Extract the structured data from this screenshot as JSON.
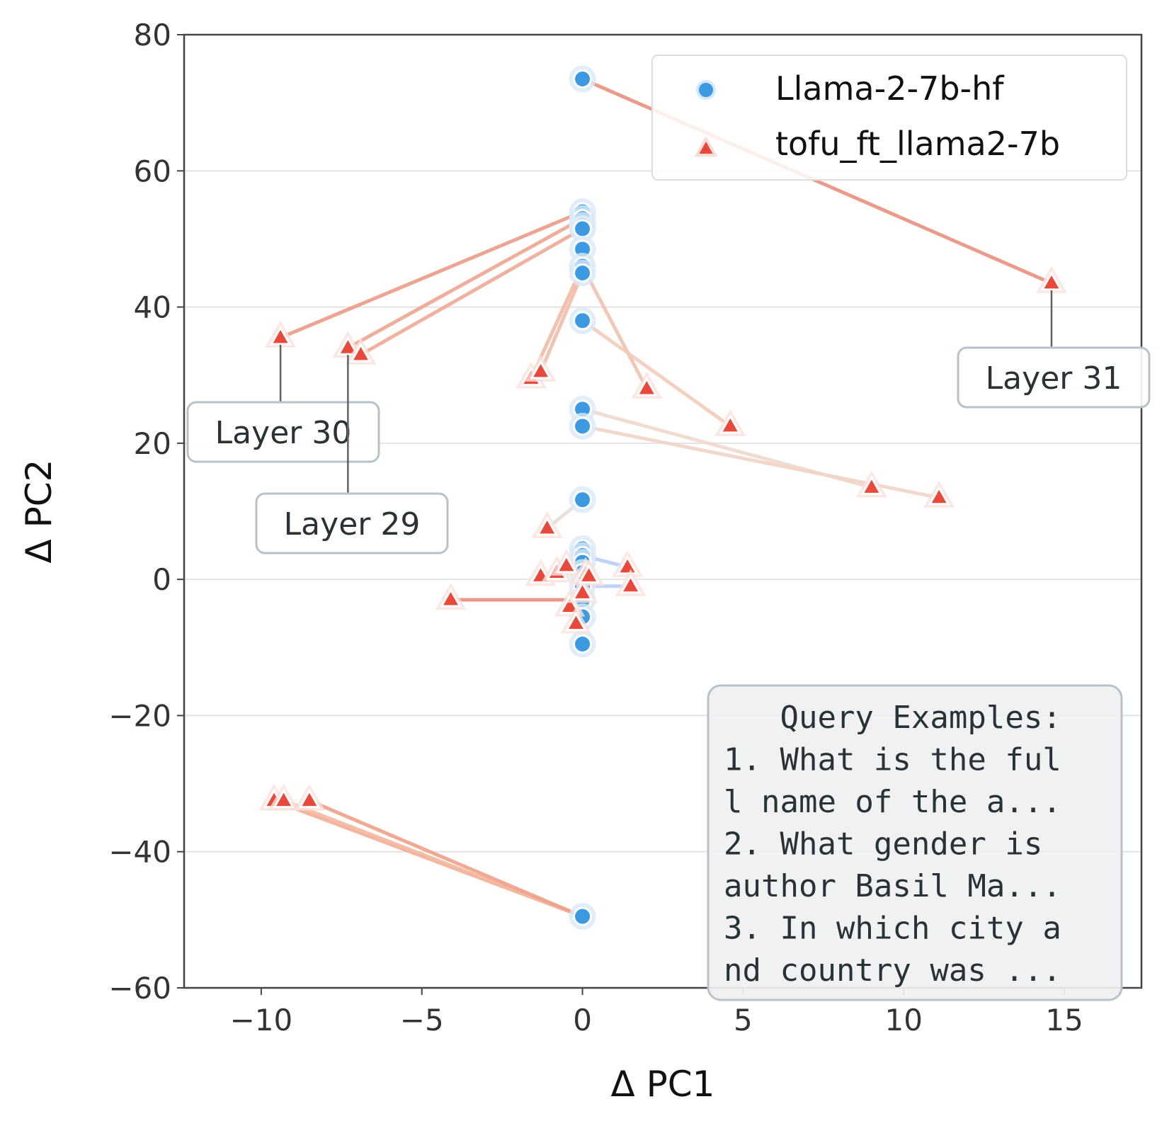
{
  "chart_data": {
    "type": "scatter",
    "xlabel": "Δ PC1",
    "ylabel": "Δ PC2",
    "xlim": [
      -12.4,
      17.4
    ],
    "ylim": [
      -60,
      80
    ],
    "xticks": [
      -10,
      -5,
      0,
      5,
      10,
      15
    ],
    "yticks": [
      -60,
      -40,
      -20,
      0,
      20,
      40,
      60,
      80
    ],
    "xtick_labels": [
      "−10",
      "−5",
      "0",
      "5",
      "10",
      "15"
    ],
    "ytick_labels": [
      "−60",
      "−40",
      "−20",
      "0",
      "20",
      "40",
      "60",
      "80"
    ],
    "grid": "horizontal",
    "legend_position": "top-right",
    "series": [
      {
        "name": "Llama-2-7b-hf",
        "marker": "circle",
        "color": "#3b9ae1",
        "points": [
          [
            0,
            73.5
          ],
          [
            0,
            54
          ],
          [
            0,
            53
          ],
          [
            0,
            52
          ],
          [
            0,
            51.5
          ],
          [
            0,
            48.5
          ],
          [
            0,
            46
          ],
          [
            0,
            45
          ],
          [
            0,
            38
          ],
          [
            0,
            25
          ],
          [
            0,
            22.5
          ],
          [
            0,
            11.7
          ],
          [
            0,
            4.5
          ],
          [
            0,
            3.5
          ],
          [
            0,
            2.5
          ],
          [
            0,
            1
          ],
          [
            0,
            -1
          ],
          [
            0,
            -3
          ],
          [
            0,
            -5.5
          ],
          [
            0,
            -9.5
          ],
          [
            0,
            -49.5
          ]
        ]
      },
      {
        "name": "tofu_ft_llama2-7b",
        "marker": "triangle",
        "color": "#e8493a",
        "points": [
          [
            14.6,
            43.5
          ],
          [
            -9.4,
            35.5
          ],
          [
            -7.3,
            34
          ],
          [
            -6.9,
            33
          ],
          [
            -1.6,
            29.5
          ],
          [
            -1.3,
            30.5
          ],
          [
            2,
            28
          ],
          [
            4.6,
            22.5
          ],
          [
            9,
            13.5
          ],
          [
            11.1,
            12
          ],
          [
            -1.1,
            7.5
          ],
          [
            1.4,
            1.8
          ],
          [
            1.5,
            -1
          ],
          [
            -4.1,
            -3
          ],
          [
            -1.3,
            0.5
          ],
          [
            -0.8,
            1
          ],
          [
            -0.5,
            2
          ],
          [
            -0.4,
            -4
          ],
          [
            -0.2,
            -6.5
          ],
          [
            0,
            -2
          ],
          [
            0.1,
            0.8
          ],
          [
            0.2,
            0.5
          ],
          [
            -9.6,
            -32.5
          ],
          [
            -9.3,
            -32.5
          ],
          [
            -8.5,
            -32.5
          ]
        ]
      }
    ],
    "connections": [
      {
        "from": [
          0,
          73.5
        ],
        "to": [
          14.6,
          43.5
        ],
        "color": "#e8907c"
      },
      {
        "from": [
          0,
          54
        ],
        "to": [
          -9.4,
          35.5
        ],
        "color": "#eb9a86"
      },
      {
        "from": [
          0,
          53
        ],
        "to": [
          -7.3,
          34
        ],
        "color": "#eda48f"
      },
      {
        "from": [
          0,
          51.5
        ],
        "to": [
          -6.9,
          33
        ],
        "color": "#eea896"
      },
      {
        "from": [
          0,
          46
        ],
        "to": [
          -1.6,
          29.5
        ],
        "color": "#f1b9a4"
      },
      {
        "from": [
          0,
          45
        ],
        "to": [
          -1.3,
          30.5
        ],
        "color": "#f1bda8"
      },
      {
        "from": [
          0,
          46
        ],
        "to": [
          2,
          28
        ],
        "color": "#f0c2ae"
      },
      {
        "from": [
          0,
          38
        ],
        "to": [
          4.6,
          22.5
        ],
        "color": "#f2cbb8"
      },
      {
        "from": [
          0,
          25
        ],
        "to": [
          9,
          13.5
        ],
        "color": "#efd8cc"
      },
      {
        "from": [
          0,
          22.5
        ],
        "to": [
          11.1,
          12
        ],
        "color": "#efd4c6"
      },
      {
        "from": [
          0,
          11.7
        ],
        "to": [
          -1.1,
          7.5
        ],
        "color": "#e8dcd6"
      },
      {
        "from": [
          0,
          3.5
        ],
        "to": [
          1.4,
          1.8
        ],
        "color": "#b8cdf7"
      },
      {
        "from": [
          0,
          -1
        ],
        "to": [
          1.5,
          -1
        ],
        "color": "#b8cdf7"
      },
      {
        "from": [
          -0.4,
          -3
        ],
        "to": [
          -4.1,
          -3
        ],
        "color": "#e38e7e"
      },
      {
        "from": [
          0,
          -49.5
        ],
        "to": [
          -9.6,
          -32.5
        ],
        "color": "#f2ad92"
      },
      {
        "from": [
          0,
          -49.5
        ],
        "to": [
          -9.3,
          -32.5
        ],
        "color": "#f3b9a0"
      },
      {
        "from": [
          0,
          -49.5
        ],
        "to": [
          -8.5,
          -32.5
        ],
        "color": "#f0a088"
      }
    ],
    "annotations": [
      {
        "text": "Layer 31",
        "point": [
          14.6,
          43.5
        ]
      },
      {
        "text": "Layer 30",
        "point": [
          -9.4,
          35.5
        ]
      },
      {
        "text": "Layer 29",
        "point": [
          -7.3,
          34
        ]
      }
    ],
    "textbox": {
      "lines": [
        "   Query Examples:",
        "1. What is the ful",
        "l name of the a...",
        "2. What gender is ",
        "author Basil Ma...",
        "3. In which city a",
        "nd country was ..."
      ]
    }
  }
}
